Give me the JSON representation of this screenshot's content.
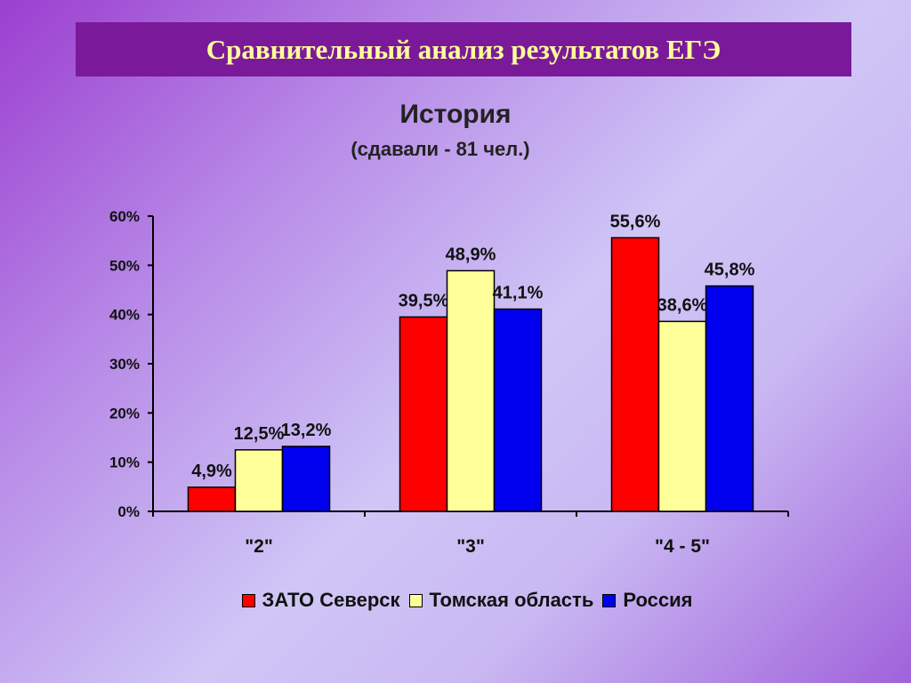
{
  "header": {
    "title": "Сравнительный анализ результатов ЕГЭ"
  },
  "chart_data": {
    "type": "bar",
    "title": "История",
    "subtitle": "(сдавали - 81 чел.)",
    "categories": [
      "\"2\"",
      "\"3\"",
      "\"4 - 5\""
    ],
    "series": [
      {
        "name": "ЗАТО Северск",
        "color": "#ff0000",
        "values": [
          4.9,
          39.5,
          55.6
        ],
        "labels": [
          "4,9%",
          "39,5%",
          "55,6%"
        ]
      },
      {
        "name": "Томская область",
        "color": "#ffff99",
        "values": [
          12.5,
          48.9,
          38.6
        ],
        "labels": [
          "12,5%",
          "48,9%",
          "38,6%"
        ]
      },
      {
        "name": "Россия",
        "color": "#0000ee",
        "values": [
          13.2,
          41.1,
          45.8
        ],
        "labels": [
          "13,2%",
          "41,1%",
          "45,8%"
        ]
      }
    ],
    "yticks": [
      "0%",
      "10%",
      "20%",
      "30%",
      "40%",
      "50%",
      "60%"
    ],
    "ylim": [
      0,
      60
    ],
    "grid": false,
    "legend_position": "bottom"
  }
}
